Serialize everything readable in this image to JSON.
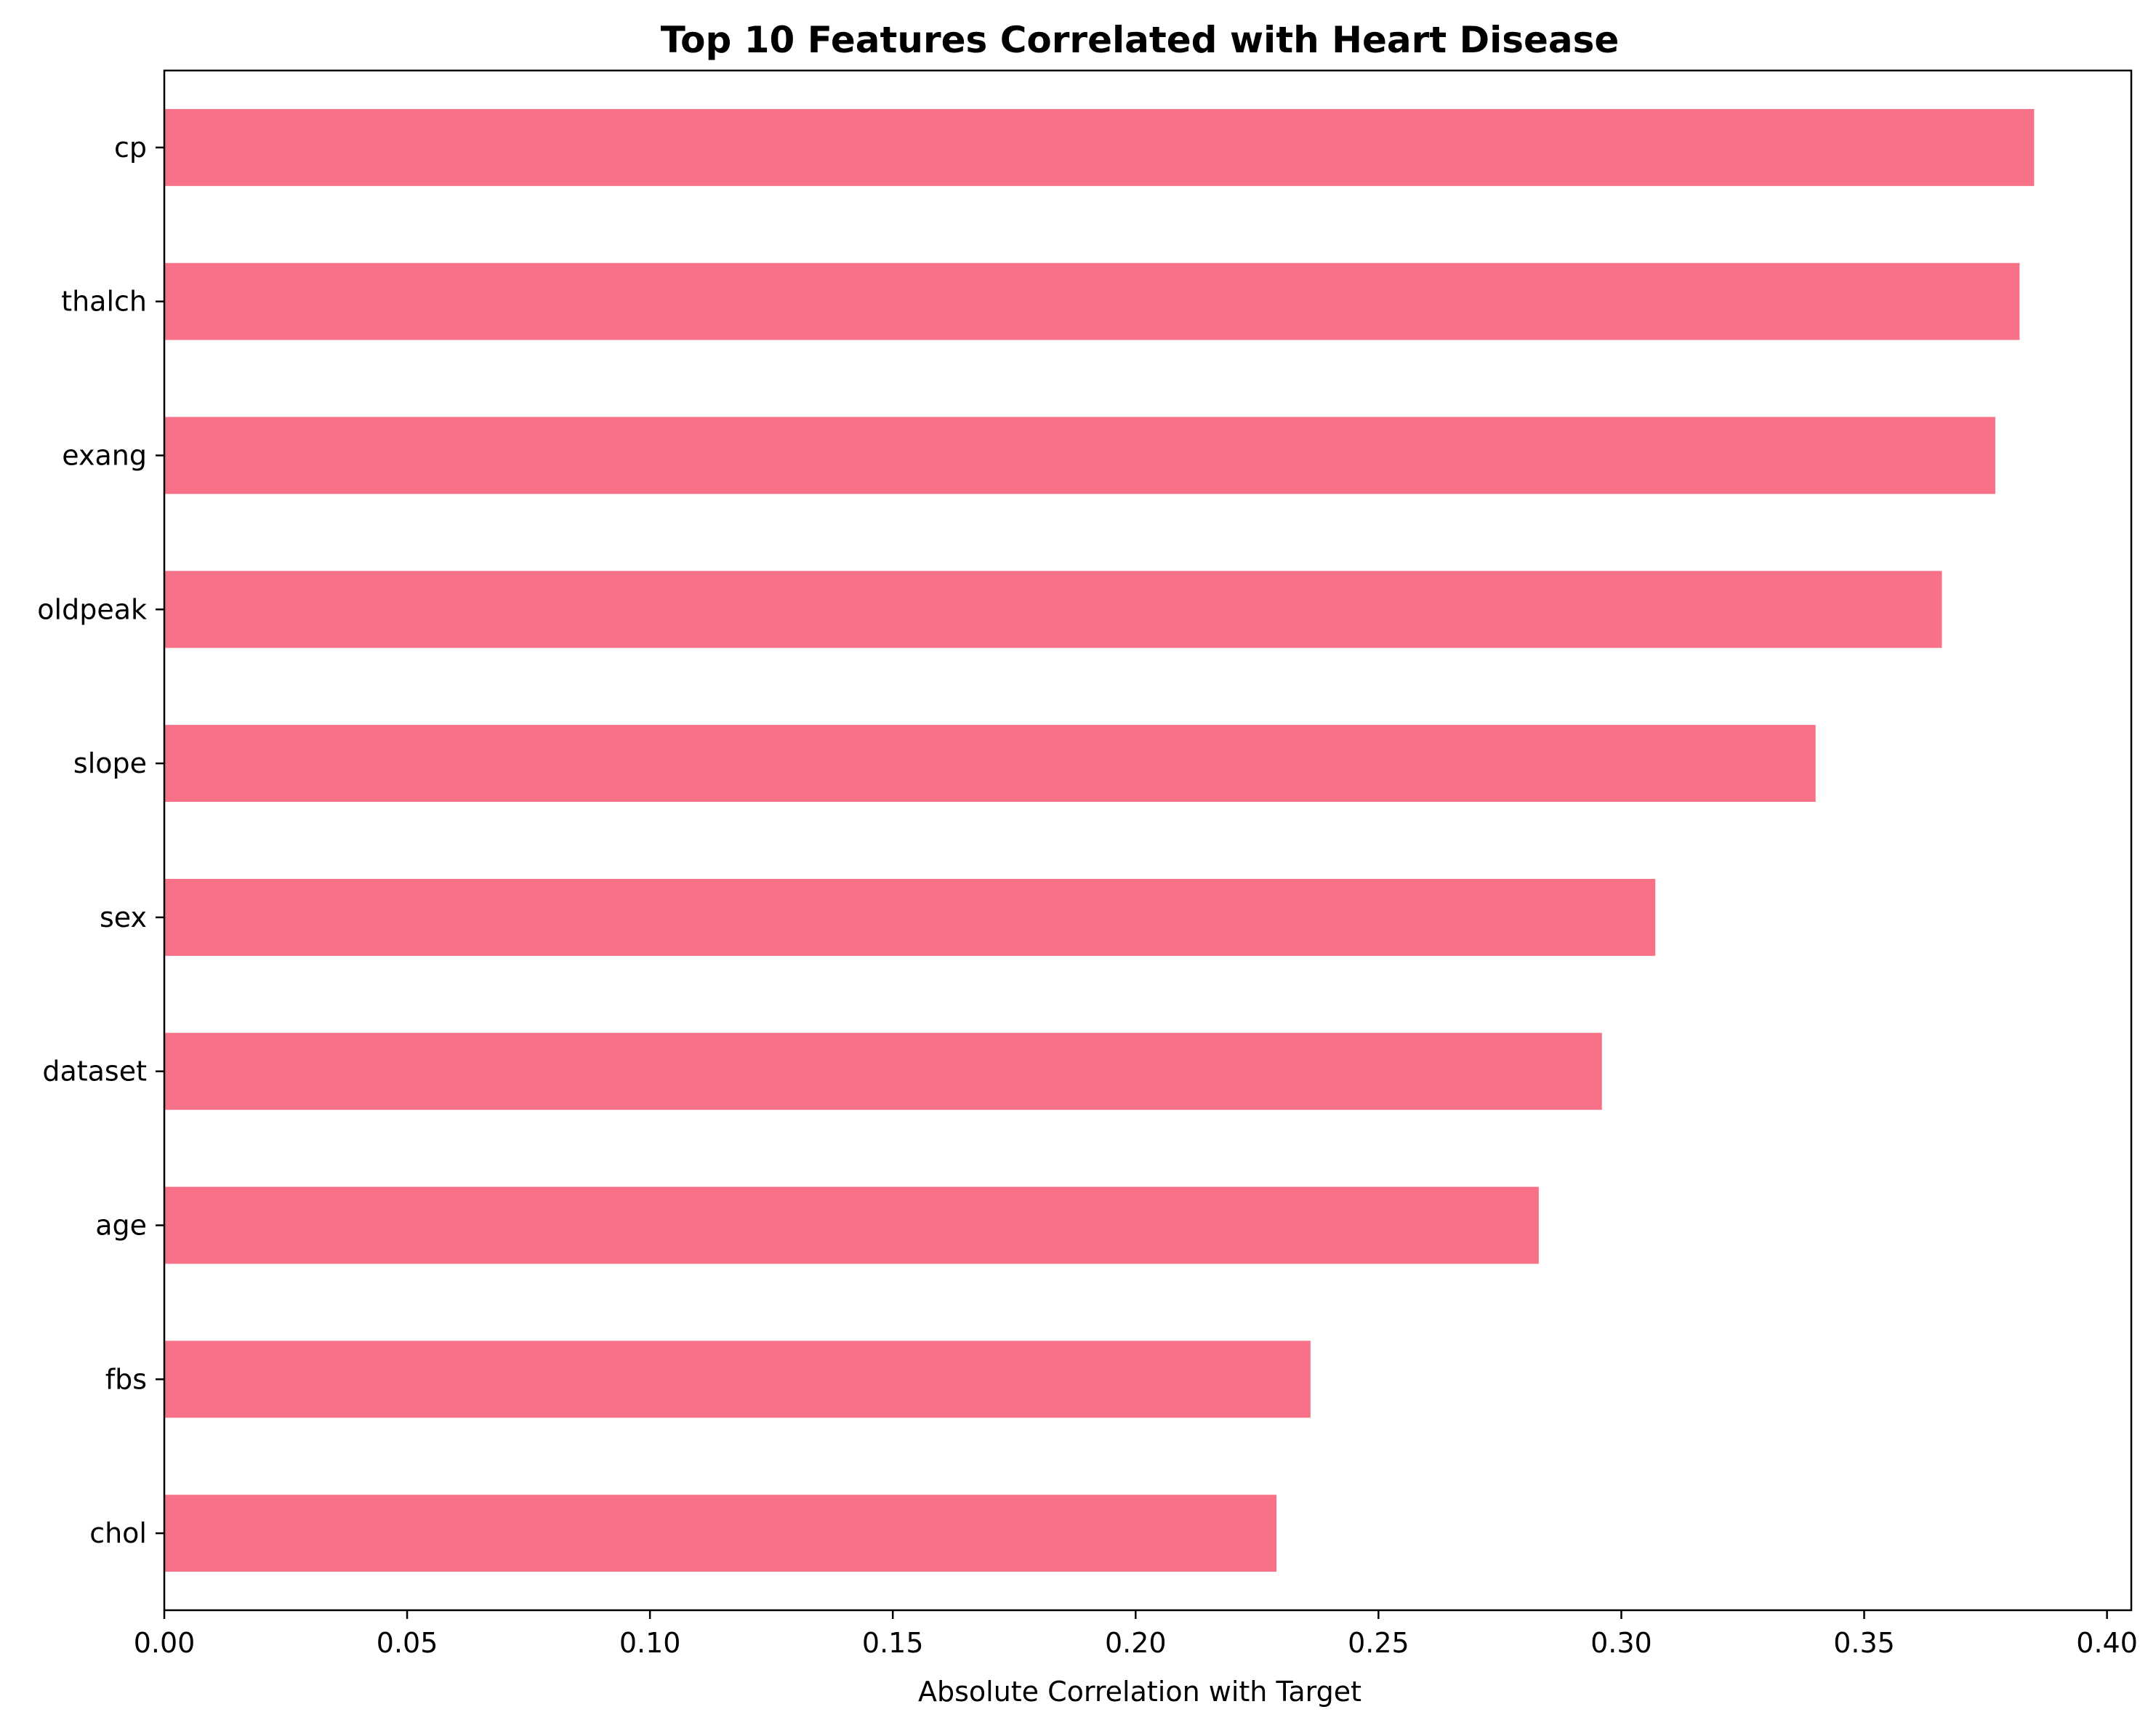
{
  "chart_data": {
    "type": "bar",
    "orientation": "horizontal",
    "title": "Top 10 Features Correlated with Heart Disease",
    "xlabel": "Absolute Correlation with Target",
    "ylabel": "",
    "xlim": [
      0,
      0.405
    ],
    "x_ticks": [
      {
        "value": 0.0,
        "label": "0.00"
      },
      {
        "value": 0.05,
        "label": "0.05"
      },
      {
        "value": 0.1,
        "label": "0.10"
      },
      {
        "value": 0.15,
        "label": "0.15"
      },
      {
        "value": 0.2,
        "label": "0.20"
      },
      {
        "value": 0.25,
        "label": "0.25"
      },
      {
        "value": 0.3,
        "label": "0.30"
      },
      {
        "value": 0.35,
        "label": "0.35"
      },
      {
        "value": 0.4,
        "label": "0.40"
      }
    ],
    "categories": [
      "cp",
      "thalch",
      "exang",
      "oldpeak",
      "slope",
      "sex",
      "dataset",
      "age",
      "fbs",
      "chol"
    ],
    "values": [
      0.385,
      0.382,
      0.377,
      0.366,
      0.34,
      0.307,
      0.296,
      0.283,
      0.236,
      0.229
    ],
    "grid": false,
    "legend": "none",
    "bar_color": "#f77189"
  }
}
